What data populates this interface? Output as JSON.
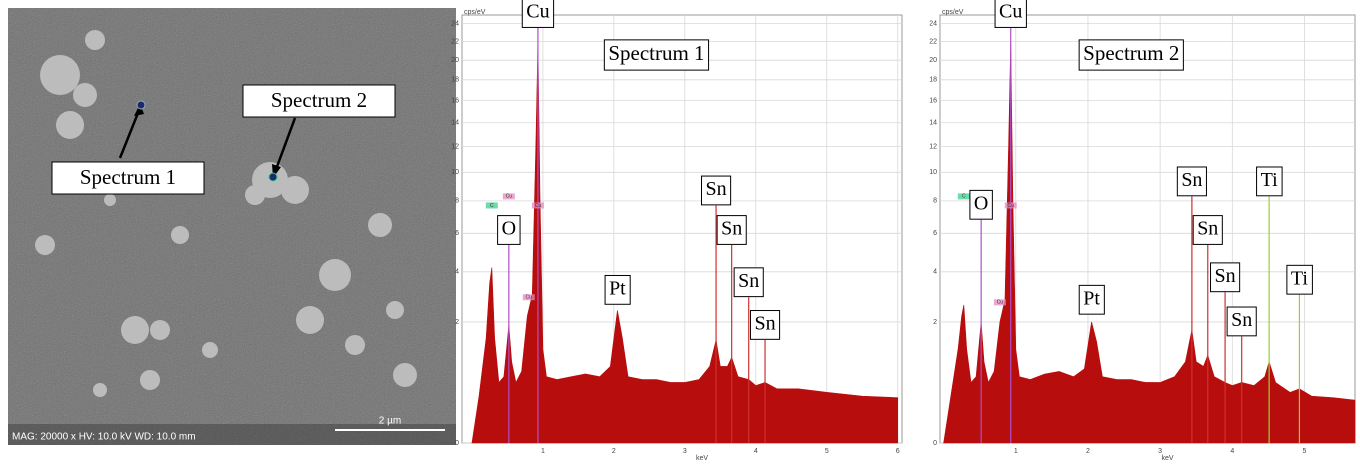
{
  "image": {
    "labels": [
      "Spectrum 1",
      "Spectrum 2"
    ],
    "info": "MAG: 20000 x  HV: 10.0 kV  WD: 10.0 mm",
    "scale_bar": "2 µm"
  },
  "chart_data": [
    {
      "type": "area",
      "title": "Spectrum 1",
      "ylabel": "cps/eV",
      "xlabel": "keV",
      "yscale": "sqrt",
      "color": "#b80d0d",
      "grid": true,
      "xlim": [
        -0.14,
        6.06
      ],
      "ylim": [
        0,
        25
      ],
      "xticks": [
        1,
        2,
        3,
        4,
        5,
        6
      ],
      "yticks": [
        0,
        2,
        4,
        6,
        8,
        10,
        12,
        14,
        16,
        18,
        20,
        22,
        24
      ],
      "x": [
        0.0,
        0.1,
        0.2,
        0.25,
        0.28,
        0.32,
        0.38,
        0.45,
        0.52,
        0.56,
        0.62,
        0.7,
        0.78,
        0.85,
        0.9,
        0.93,
        0.96,
        1.0,
        1.05,
        1.2,
        1.4,
        1.6,
        1.8,
        1.95,
        2.05,
        2.12,
        2.2,
        2.4,
        2.6,
        2.8,
        3.0,
        3.2,
        3.35,
        3.44,
        3.5,
        3.6,
        3.66,
        3.75,
        3.9,
        4.0,
        4.13,
        4.3,
        4.6,
        5.0,
        5.5,
        6.0
      ],
      "values": [
        0,
        0.3,
        1.5,
        3.5,
        4.2,
        1.5,
        0.5,
        0.6,
        1.9,
        0.9,
        0.5,
        0.7,
        2.2,
        3.0,
        12,
        22,
        8,
        1.2,
        0.6,
        0.55,
        0.6,
        0.65,
        0.6,
        0.8,
        2.4,
        1.5,
        0.6,
        0.55,
        0.55,
        0.5,
        0.5,
        0.55,
        0.8,
        1.45,
        0.8,
        0.8,
        1.0,
        0.6,
        0.55,
        0.45,
        0.5,
        0.4,
        0.4,
        0.35,
        0.3,
        0.28
      ],
      "lines": [
        {
          "text": "O",
          "x": 0.52,
          "top": 5.35,
          "color": "#b04fc8"
        },
        {
          "text": "Cu",
          "x": 0.93,
          "top": 23.5,
          "color": "#b04fc8"
        },
        {
          "text": "Sn",
          "x": 3.44,
          "top": 7.7,
          "color": "#d03030"
        },
        {
          "text": "Sn",
          "x": 3.66,
          "top": 5.35,
          "color": "#d03030"
        },
        {
          "text": "Sn",
          "x": 3.9,
          "top": 2.9,
          "color": "#d03030"
        },
        {
          "text": "Sn",
          "x": 4.13,
          "top": 1.45,
          "color": "#d03030"
        }
      ],
      "peak_labels": [
        {
          "text": "Pt",
          "x": 2.05,
          "y": 3.2
        }
      ],
      "tags": [
        {
          "text": "C",
          "x": 0.28,
          "y": 7.7,
          "color": "#3ccf8e"
        },
        {
          "text": "Cu",
          "x": 0.52,
          "y": 8.3,
          "color": "#e48ac0"
        },
        {
          "text": "Cu",
          "x": 0.93,
          "y": 7.7,
          "color": "#e48ac0"
        },
        {
          "text": "Cu",
          "x": 0.8,
          "y": 2.9,
          "color": "#e48ac0"
        }
      ]
    },
    {
      "type": "area",
      "title": "Spectrum 2",
      "ylabel": "cps/eV",
      "xlabel": "keV",
      "yscale": "sqrt",
      "color": "#b80d0d",
      "grid": true,
      "xlim": [
        -0.05,
        5.7
      ],
      "ylim": [
        0,
        25
      ],
      "xticks": [
        1,
        2,
        3,
        4,
        5
      ],
      "yticks": [
        0,
        2,
        4,
        6,
        8,
        10,
        12,
        14,
        16,
        18,
        20,
        22,
        24
      ],
      "x": [
        0.0,
        0.1,
        0.2,
        0.25,
        0.28,
        0.32,
        0.38,
        0.45,
        0.52,
        0.56,
        0.62,
        0.7,
        0.78,
        0.85,
        0.9,
        0.93,
        0.96,
        1.0,
        1.05,
        1.2,
        1.4,
        1.6,
        1.8,
        1.95,
        2.05,
        2.12,
        2.2,
        2.4,
        2.6,
        2.8,
        3.0,
        3.2,
        3.35,
        3.44,
        3.5,
        3.6,
        3.66,
        3.75,
        3.9,
        4.0,
        4.13,
        4.3,
        4.45,
        4.51,
        4.6,
        4.8,
        4.93,
        5.1,
        5.4,
        5.7
      ],
      "values": [
        0,
        0.3,
        1.2,
        2.2,
        2.6,
        1.2,
        0.5,
        0.6,
        2.0,
        0.9,
        0.5,
        0.7,
        2.0,
        2.8,
        12,
        22,
        8,
        1.2,
        0.6,
        0.55,
        0.65,
        0.7,
        0.6,
        0.75,
        2.0,
        1.4,
        0.6,
        0.55,
        0.55,
        0.5,
        0.5,
        0.6,
        0.9,
        1.75,
        0.9,
        0.8,
        1.05,
        0.6,
        0.5,
        0.45,
        0.5,
        0.45,
        0.6,
        0.9,
        0.5,
        0.35,
        0.4,
        0.3,
        0.28,
        0.25
      ],
      "lines": [
        {
          "text": "O",
          "x": 0.52,
          "top": 6.8,
          "color": "#b04fc8"
        },
        {
          "text": "Cu",
          "x": 0.93,
          "top": 23.5,
          "color": "#b04fc8"
        },
        {
          "text": "Sn",
          "x": 3.44,
          "top": 8.3,
          "color": "#d03030"
        },
        {
          "text": "Sn",
          "x": 3.66,
          "top": 5.35,
          "color": "#d03030"
        },
        {
          "text": "Sn",
          "x": 3.9,
          "top": 3.1,
          "color": "#d03030"
        },
        {
          "text": "Sn",
          "x": 4.13,
          "top": 1.55,
          "color": "#d03030"
        },
        {
          "text": "Ti",
          "x": 4.51,
          "top": 8.3,
          "color": "#9ccf3a"
        },
        {
          "text": "Ti",
          "x": 4.93,
          "top": 3.0,
          "color": "#9ccf3a"
        }
      ],
      "peak_labels": [
        {
          "text": "Pt",
          "x": 2.05,
          "y": 2.8
        }
      ],
      "tags": [
        {
          "text": "C",
          "x": 0.28,
          "y": 8.3,
          "color": "#3ccf8e"
        },
        {
          "text": "Cu",
          "x": 0.52,
          "y": 8.3,
          "color": "#e48ac0"
        },
        {
          "text": "Cu",
          "x": 0.93,
          "y": 7.7,
          "color": "#e48ac0"
        },
        {
          "text": "Cu",
          "x": 0.78,
          "y": 2.7,
          "color": "#e48ac0"
        }
      ]
    }
  ]
}
